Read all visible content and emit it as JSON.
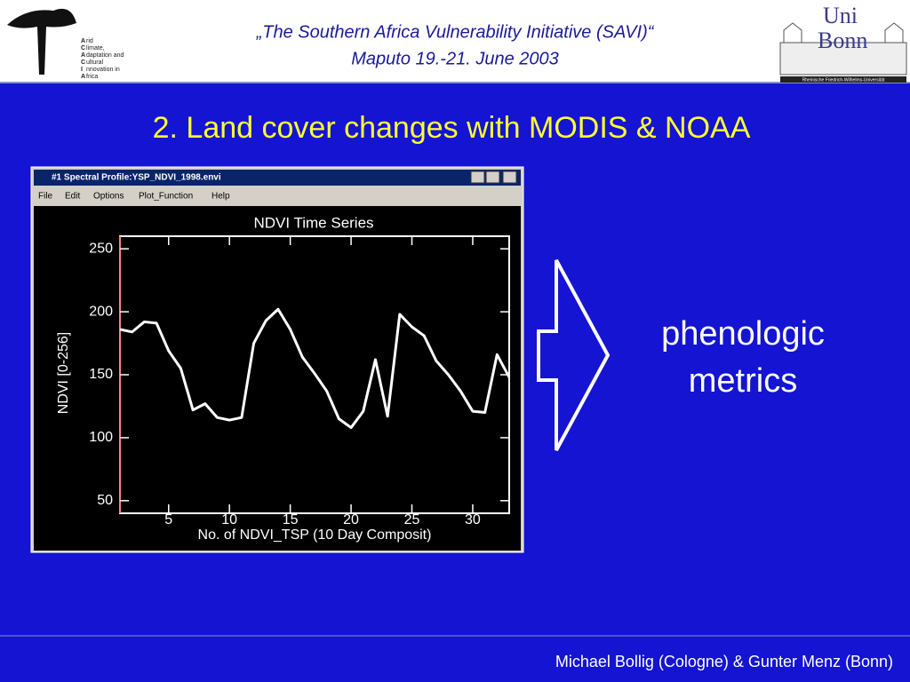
{
  "header": {
    "line1": "„The Southern Africa Vulnerability Initiative (SAVI)“",
    "line2": "Maputo 19.-21. June 2003",
    "left_logo": [
      "A",
      "rid",
      "C",
      "limate,",
      "A",
      "daptation and",
      "C",
      "ultural",
      "I",
      "nnovation in",
      "A",
      "frica"
    ],
    "right_logo": {
      "top": "Uni",
      "bottom": "Bonn",
      "caption": "Rheinische Friedrich-Wilhelms-Universität"
    }
  },
  "slide_title": "2. Land cover changes with MODIS & NOAA",
  "window": {
    "title": "#1 Spectral Profile:YSP_NDVI_1998.envi",
    "menu": [
      "File",
      "Edit",
      "Options",
      "Plot_Function",
      "Help"
    ]
  },
  "chart_data": {
    "type": "line",
    "title": "NDVI Time Series",
    "x_label": "No. of NDVI_TSP (10 Day Composit)",
    "y_label": "NDVI [0-256]",
    "x": [
      1,
      2,
      3,
      4,
      5,
      6,
      7,
      8,
      9,
      10,
      11,
      12,
      13,
      14,
      15,
      16,
      17,
      18,
      19,
      20,
      21,
      22,
      23,
      24,
      25,
      26,
      27,
      28,
      29,
      30,
      31,
      32,
      33
    ],
    "values": [
      186,
      184,
      192,
      191,
      169,
      155,
      122,
      127,
      116,
      114,
      116,
      175,
      193,
      202,
      186,
      164,
      151,
      137,
      115,
      108,
      121,
      162,
      117,
      198,
      188,
      181,
      161,
      150,
      137,
      121,
      120,
      166,
      148
    ],
    "color": "#ffffff",
    "xlim": [
      1,
      33
    ],
    "ylim": [
      40,
      260
    ],
    "xticks": [
      5,
      10,
      15,
      20,
      25,
      30
    ],
    "yticks": [
      50,
      100,
      150,
      200,
      250
    ]
  },
  "side_text": [
    "phenologic",
    "metrics"
  ],
  "footer": "Michael Bollig (Cologne) & Gunter Menz (Bonn)"
}
